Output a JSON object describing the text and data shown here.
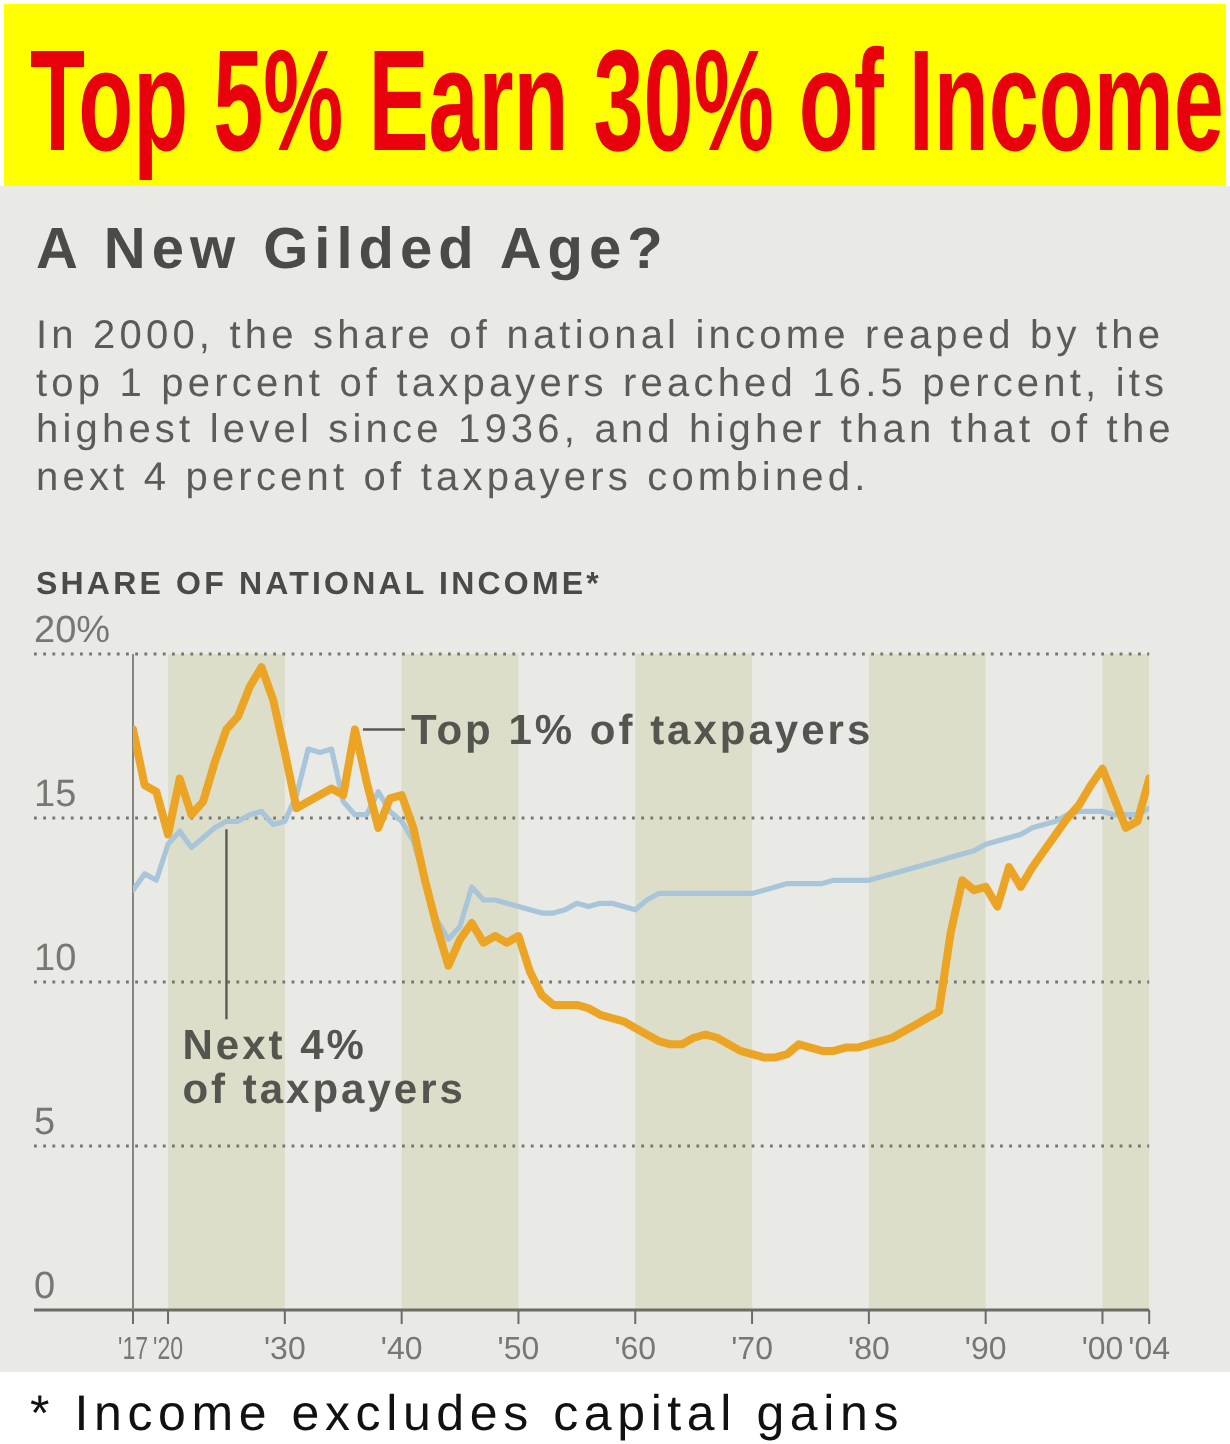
{
  "chart_data": {
    "type": "line",
    "title": "Top 5% Earn 30% of Income",
    "subtitle": "A New Gilded Age?",
    "ylabel": "SHARE OF NATIONAL INCOME*",
    "annotations": [
      "In 2000, the share of national income reaped by the top 1 percent of taxpayers reached 16.5 percent, its highest level since 1936, and higher than that of the next 4 percent of taxpayers combined.",
      "* Income excludes capital gains"
    ],
    "x": [
      1917,
      1918,
      1919,
      1920,
      1921,
      1922,
      1923,
      1924,
      1925,
      1926,
      1927,
      1928,
      1929,
      1930,
      1931,
      1932,
      1933,
      1934,
      1935,
      1936,
      1937,
      1938,
      1939,
      1940,
      1941,
      1942,
      1943,
      1944,
      1945,
      1946,
      1947,
      1948,
      1949,
      1950,
      1951,
      1952,
      1953,
      1954,
      1955,
      1956,
      1957,
      1958,
      1959,
      1960,
      1961,
      1962,
      1963,
      1964,
      1965,
      1966,
      1967,
      1968,
      1969,
      1970,
      1971,
      1972,
      1973,
      1974,
      1975,
      1976,
      1977,
      1978,
      1979,
      1980,
      1981,
      1982,
      1983,
      1984,
      1985,
      1986,
      1987,
      1988,
      1989,
      1990,
      1991,
      1992,
      1993,
      1994,
      1995,
      1996,
      1997,
      1998,
      1999,
      2000,
      2001,
      2002,
      2003,
      2004
    ],
    "series": [
      {
        "name": "Top 1% of taxpayers",
        "color": "#eca424",
        "values": [
          17.7,
          16.0,
          15.8,
          14.5,
          16.2,
          15.1,
          15.5,
          16.7,
          17.7,
          18.1,
          19.0,
          19.6,
          18.6,
          17.0,
          15.3,
          15.5,
          15.7,
          15.9,
          15.7,
          17.7,
          16.1,
          14.7,
          15.6,
          15.7,
          14.7,
          13.1,
          11.7,
          10.5,
          11.3,
          11.8,
          11.2,
          11.4,
          11.2,
          11.4,
          10.3,
          9.6,
          9.3,
          9.3,
          9.3,
          9.2,
          9.0,
          8.9,
          8.8,
          8.6,
          8.4,
          8.2,
          8.1,
          8.1,
          8.3,
          8.4,
          8.3,
          8.1,
          7.9,
          7.8,
          7.7,
          7.7,
          7.8,
          8.1,
          8.0,
          7.9,
          7.9,
          8.0,
          8.0,
          8.1,
          8.2,
          8.3,
          8.5,
          8.7,
          8.9,
          9.1,
          11.5,
          13.1,
          12.8,
          12.9,
          12.3,
          13.5,
          12.9,
          13.5,
          14.0,
          14.5,
          15.0,
          15.4,
          16.0,
          16.5,
          15.6,
          14.7,
          14.9,
          16.2
        ]
      },
      {
        "name": "Next 4% of taxpayers",
        "color": "#a9c5da",
        "values": [
          12.8,
          13.3,
          13.1,
          14.2,
          14.6,
          14.1,
          14.4,
          14.7,
          14.9,
          14.9,
          15.1,
          15.2,
          14.8,
          14.9,
          15.7,
          17.1,
          17.0,
          17.1,
          15.5,
          15.1,
          15.1,
          15.8,
          15.2,
          14.9,
          14.3,
          13.1,
          11.9,
          11.3,
          11.7,
          12.9,
          12.5,
          12.5,
          12.4,
          12.3,
          12.2,
          12.1,
          12.1,
          12.2,
          12.4,
          12.3,
          12.4,
          12.4,
          12.3,
          12.2,
          12.5,
          12.7,
          12.7,
          12.7,
          12.7,
          12.7,
          12.7,
          12.7,
          12.7,
          12.7,
          12.8,
          12.9,
          13.0,
          13.0,
          13.0,
          13.0,
          13.1,
          13.1,
          13.1,
          13.1,
          13.2,
          13.3,
          13.4,
          13.5,
          13.6,
          13.7,
          13.8,
          13.9,
          14.0,
          14.2,
          14.3,
          14.4,
          14.5,
          14.7,
          14.8,
          14.9,
          15.1,
          15.2,
          15.2,
          15.2,
          15.1,
          15.1,
          15.1,
          15.3
        ]
      }
    ],
    "xlim": [
      1917,
      2004
    ],
    "ylim": [
      0,
      20
    ],
    "xticks": [
      {
        "value": 1917,
        "label": "'17"
      },
      {
        "value": 1920,
        "label": "'20"
      },
      {
        "value": 1930,
        "label": "'30"
      },
      {
        "value": 1940,
        "label": "'40"
      },
      {
        "value": 1950,
        "label": "'50"
      },
      {
        "value": 1960,
        "label": "'60"
      },
      {
        "value": 1970,
        "label": "'70"
      },
      {
        "value": 1980,
        "label": "'80"
      },
      {
        "value": 1990,
        "label": "'90"
      },
      {
        "value": 2000,
        "label": "'00"
      },
      {
        "value": 2004,
        "label": "'04"
      }
    ],
    "yticks": [
      0,
      5,
      10,
      15,
      {
        "value": 20,
        "label": "20%"
      }
    ],
    "grid": "y",
    "bands": [
      {
        "axis": "x",
        "from": 1920,
        "to": 1930,
        "color": "#dcdec9"
      },
      {
        "axis": "x",
        "from": 1940,
        "to": 1950,
        "color": "#dcdec9"
      },
      {
        "axis": "x",
        "from": 1960,
        "to": 1970,
        "color": "#dcdec9"
      },
      {
        "axis": "x",
        "from": 1980,
        "to": 1990,
        "color": "#dcdec9"
      },
      {
        "axis": "x",
        "from": 2000,
        "to": 2004,
        "color": "#dcdec9"
      }
    ]
  }
}
